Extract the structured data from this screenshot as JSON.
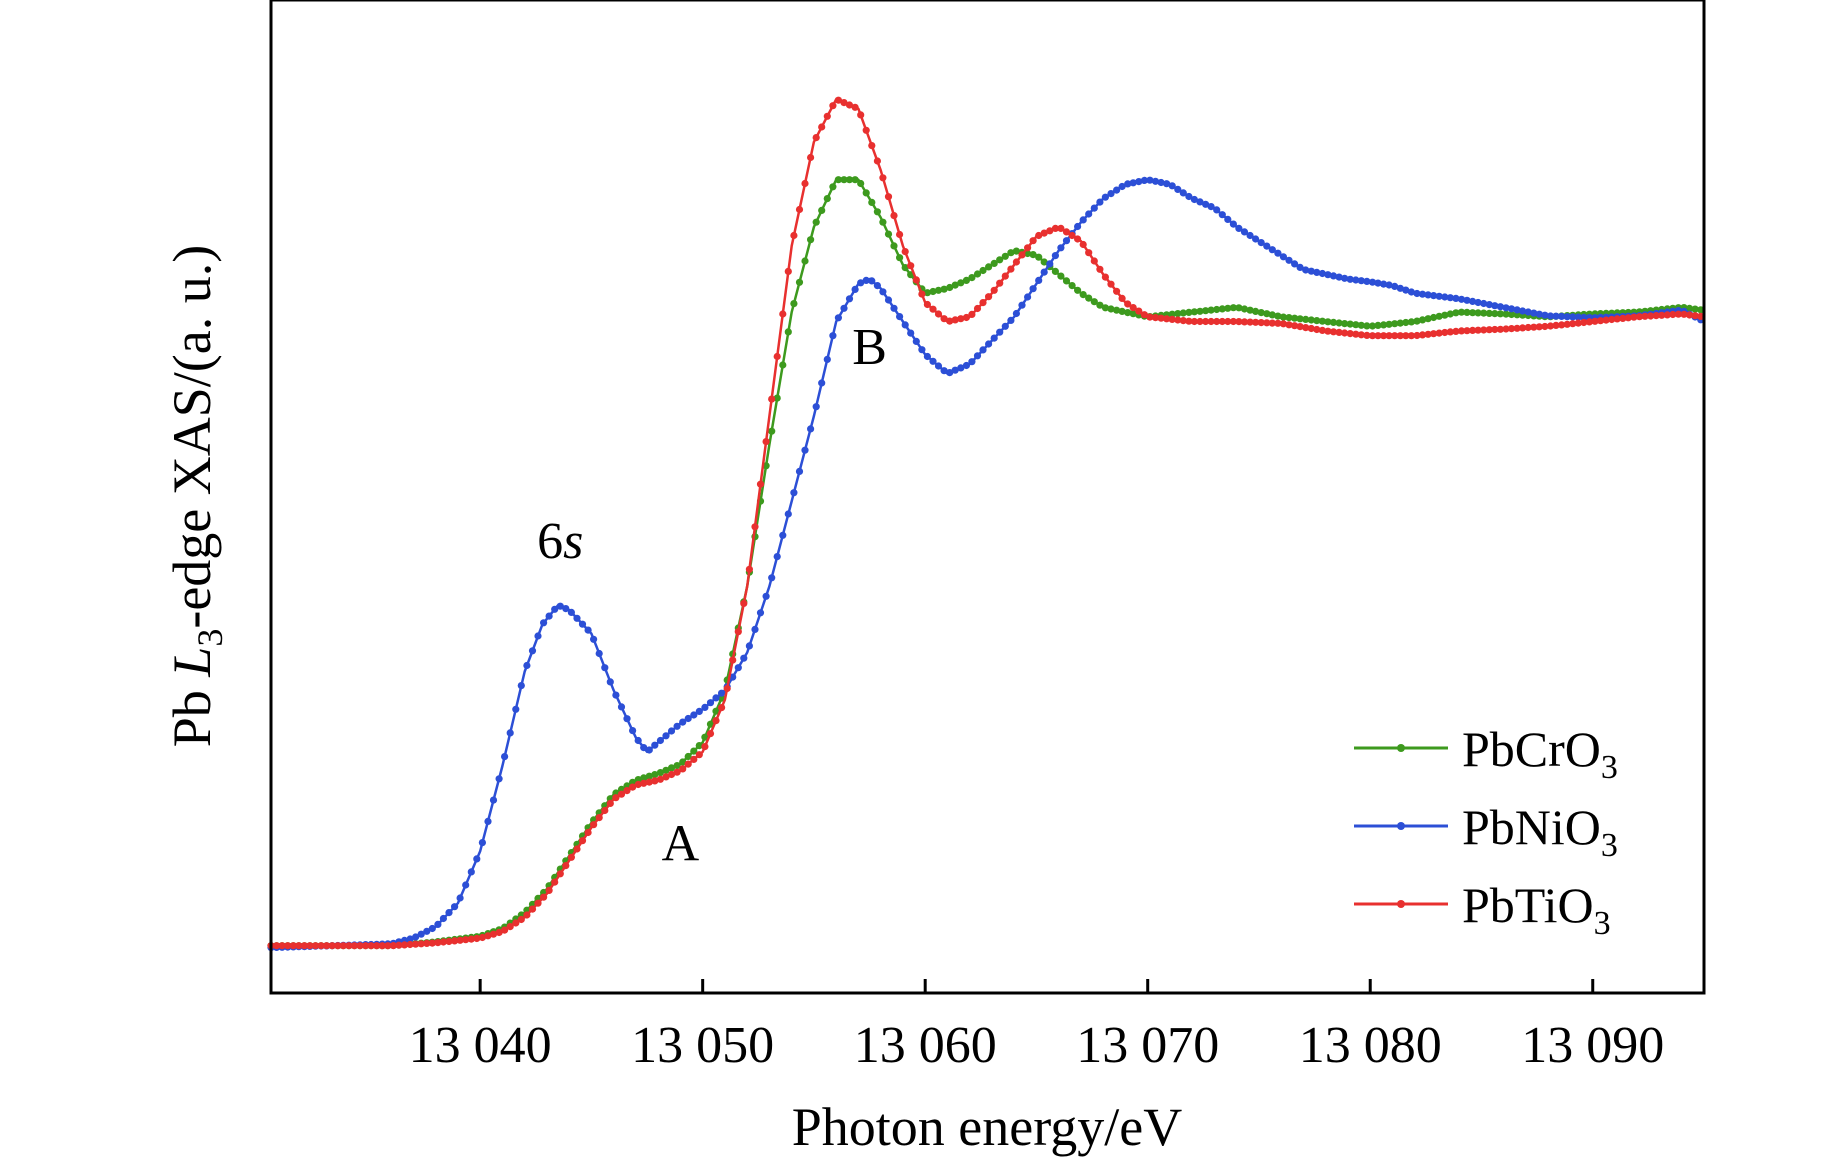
{
  "chart_data": {
    "type": "line",
    "title": "",
    "xlabel": "Photon energy/eV",
    "ylabel": {
      "prefix": "Pb ",
      "italic": "L",
      "subscript": "3",
      "suffix": "-edge XAS/(a. u.)"
    },
    "xlim": [
      13030.6,
      13095.0
    ],
    "ylim": [
      -0.05,
      1.0
    ],
    "xticks": [
      13040,
      13050,
      13060,
      13070,
      13080,
      13090
    ],
    "xtick_labels": [
      "13 040",
      "13 050",
      "13 060",
      "13 070",
      "13 080",
      "13 090"
    ],
    "y_ticks_shown": false,
    "grid": false,
    "legend_position": "bottom-right",
    "series": [
      {
        "id": "pbcro3",
        "name": "PbCrO3",
        "name_base": "PbCrO",
        "name_sub": "3",
        "color": "#3d9a1e",
        "points": [
          [
            13030.6,
            0.0
          ],
          [
            13036,
            0.0
          ],
          [
            13038,
            0.004
          ],
          [
            13040,
            0.01
          ],
          [
            13041,
            0.018
          ],
          [
            13042,
            0.035
          ],
          [
            13043,
            0.06
          ],
          [
            13044,
            0.095
          ],
          [
            13045,
            0.13
          ],
          [
            13046,
            0.16
          ],
          [
            13047,
            0.175
          ],
          [
            13048,
            0.182
          ],
          [
            13049,
            0.192
          ],
          [
            13050,
            0.215
          ],
          [
            13051,
            0.27
          ],
          [
            13052,
            0.38
          ],
          [
            13053,
            0.53
          ],
          [
            13054,
            0.67
          ],
          [
            13055,
            0.76
          ],
          [
            13056,
            0.81
          ],
          [
            13057,
            0.81
          ],
          [
            13058,
            0.77
          ],
          [
            13059,
            0.72
          ],
          [
            13060,
            0.69
          ],
          [
            13061,
            0.695
          ],
          [
            13062,
            0.705
          ],
          [
            13063,
            0.72
          ],
          [
            13064,
            0.735
          ],
          [
            13065,
            0.73
          ],
          [
            13066,
            0.71
          ],
          [
            13067,
            0.69
          ],
          [
            13068,
            0.675
          ],
          [
            13069,
            0.67
          ],
          [
            13070,
            0.665
          ],
          [
            13072,
            0.67
          ],
          [
            13074,
            0.675
          ],
          [
            13076,
            0.665
          ],
          [
            13078,
            0.66
          ],
          [
            13080,
            0.655
          ],
          [
            13082,
            0.66
          ],
          [
            13084,
            0.67
          ],
          [
            13086,
            0.668
          ],
          [
            13088,
            0.665
          ],
          [
            13090,
            0.668
          ],
          [
            13092,
            0.67
          ],
          [
            13094,
            0.675
          ],
          [
            13095,
            0.672
          ]
        ]
      },
      {
        "id": "pbnio3",
        "name": "PbNiO3",
        "name_base": "PbNiO",
        "name_sub": "3",
        "color": "#2c4fd6",
        "points": [
          [
            13030.6,
            -0.002
          ],
          [
            13036,
            0.002
          ],
          [
            13037,
            0.008
          ],
          [
            13038,
            0.02
          ],
          [
            13039,
            0.045
          ],
          [
            13040,
            0.1
          ],
          [
            13041,
            0.19
          ],
          [
            13042,
            0.29
          ],
          [
            13042.8,
            0.34
          ],
          [
            13043.5,
            0.36
          ],
          [
            13044,
            0.355
          ],
          [
            13045,
            0.33
          ],
          [
            13046,
            0.27
          ],
          [
            13047,
            0.22
          ],
          [
            13047.5,
            0.205
          ],
          [
            13048,
            0.215
          ],
          [
            13049,
            0.235
          ],
          [
            13050,
            0.25
          ],
          [
            13051,
            0.27
          ],
          [
            13052,
            0.31
          ],
          [
            13053,
            0.38
          ],
          [
            13054,
            0.47
          ],
          [
            13055,
            0.56
          ],
          [
            13056,
            0.66
          ],
          [
            13057,
            0.7
          ],
          [
            13057.5,
            0.705
          ],
          [
            13058,
            0.695
          ],
          [
            13059,
            0.66
          ],
          [
            13060,
            0.625
          ],
          [
            13061,
            0.605
          ],
          [
            13062,
            0.615
          ],
          [
            13063,
            0.64
          ],
          [
            13064,
            0.665
          ],
          [
            13065,
            0.7
          ],
          [
            13066,
            0.735
          ],
          [
            13067,
            0.765
          ],
          [
            13068,
            0.79
          ],
          [
            13069,
            0.805
          ],
          [
            13070,
            0.81
          ],
          [
            13071,
            0.805
          ],
          [
            13072,
            0.79
          ],
          [
            13073,
            0.78
          ],
          [
            13074,
            0.76
          ],
          [
            13075,
            0.745
          ],
          [
            13076,
            0.73
          ],
          [
            13077,
            0.715
          ],
          [
            13078,
            0.71
          ],
          [
            13079,
            0.705
          ],
          [
            13080,
            0.702
          ],
          [
            13081,
            0.698
          ],
          [
            13082,
            0.69
          ],
          [
            13084,
            0.684
          ],
          [
            13086,
            0.675
          ],
          [
            13088,
            0.666
          ],
          [
            13090,
            0.664
          ],
          [
            13092,
            0.666
          ],
          [
            13094,
            0.672
          ],
          [
            13095,
            0.66
          ]
        ]
      },
      {
        "id": "pbtio3",
        "name": "PbTiO3",
        "name_base": "PbTiO",
        "name_sub": "3",
        "color": "#e8302f",
        "points": [
          [
            13030.6,
            0.0
          ],
          [
            13036,
            0.0
          ],
          [
            13038,
            0.003
          ],
          [
            13040,
            0.008
          ],
          [
            13041,
            0.015
          ],
          [
            13042,
            0.03
          ],
          [
            13043,
            0.055
          ],
          [
            13044,
            0.09
          ],
          [
            13045,
            0.125
          ],
          [
            13046,
            0.155
          ],
          [
            13047,
            0.17
          ],
          [
            13048,
            0.175
          ],
          [
            13049,
            0.185
          ],
          [
            13050,
            0.205
          ],
          [
            13051,
            0.26
          ],
          [
            13052,
            0.38
          ],
          [
            13053,
            0.56
          ],
          [
            13054,
            0.74
          ],
          [
            13055,
            0.85
          ],
          [
            13056,
            0.895
          ],
          [
            13057,
            0.885
          ],
          [
            13058,
            0.82
          ],
          [
            13059,
            0.74
          ],
          [
            13060,
            0.68
          ],
          [
            13061,
            0.66
          ],
          [
            13062,
            0.665
          ],
          [
            13063,
            0.69
          ],
          [
            13064,
            0.72
          ],
          [
            13065,
            0.75
          ],
          [
            13066,
            0.76
          ],
          [
            13067,
            0.745
          ],
          [
            13068,
            0.71
          ],
          [
            13069,
            0.68
          ],
          [
            13070,
            0.665
          ],
          [
            13072,
            0.66
          ],
          [
            13074,
            0.66
          ],
          [
            13076,
            0.658
          ],
          [
            13078,
            0.65
          ],
          [
            13080,
            0.645
          ],
          [
            13082,
            0.645
          ],
          [
            13084,
            0.65
          ],
          [
            13086,
            0.652
          ],
          [
            13088,
            0.655
          ],
          [
            13090,
            0.66
          ],
          [
            13092,
            0.665
          ],
          [
            13094,
            0.668
          ],
          [
            13095,
            0.665
          ]
        ]
      }
    ],
    "annotations": [
      {
        "id": "annot-6s",
        "text": "6",
        "italic_suffix": "s",
        "x": 13043.6,
        "y": 0.41
      },
      {
        "id": "annot-A",
        "text": "A",
        "x": 13049.0,
        "y": 0.09
      },
      {
        "id": "annot-B",
        "text": "B",
        "x": 13057.5,
        "y": 0.615
      }
    ]
  }
}
